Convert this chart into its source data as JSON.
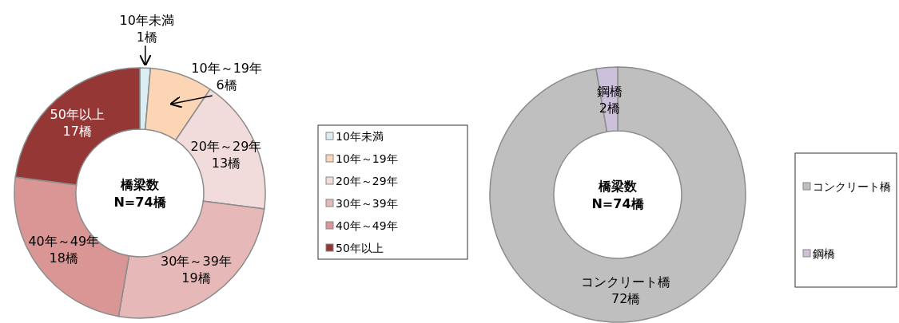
{
  "chart_data": [
    {
      "type": "donut",
      "categories": [
        "10年未満",
        "10年～19年",
        "20年～29年",
        "30年～39年",
        "40年～49年",
        "50年以上"
      ],
      "values": [
        1,
        6,
        13,
        19,
        18,
        17
      ],
      "colors": [
        "#dbeef4",
        "#fcd5b4",
        "#f2dcdb",
        "#e6b9b8",
        "#d99694",
        "#953735"
      ],
      "value_labels": [
        "1橋",
        "6橋",
        "13橋",
        "19橋",
        "18橋",
        "17橋"
      ],
      "annotations": [
        "橋梁数",
        "N=74橋"
      ],
      "legend": "right"
    },
    {
      "type": "donut",
      "categories": [
        "コンクリート橋",
        "鋼橋"
      ],
      "values": [
        72,
        2
      ],
      "colors": [
        "#bfbfbf",
        "#ccc0da"
      ],
      "value_labels": [
        "72橋",
        "2橋"
      ],
      "annotations": [
        "橋梁数",
        "N=74橋"
      ],
      "legend": "right"
    }
  ]
}
